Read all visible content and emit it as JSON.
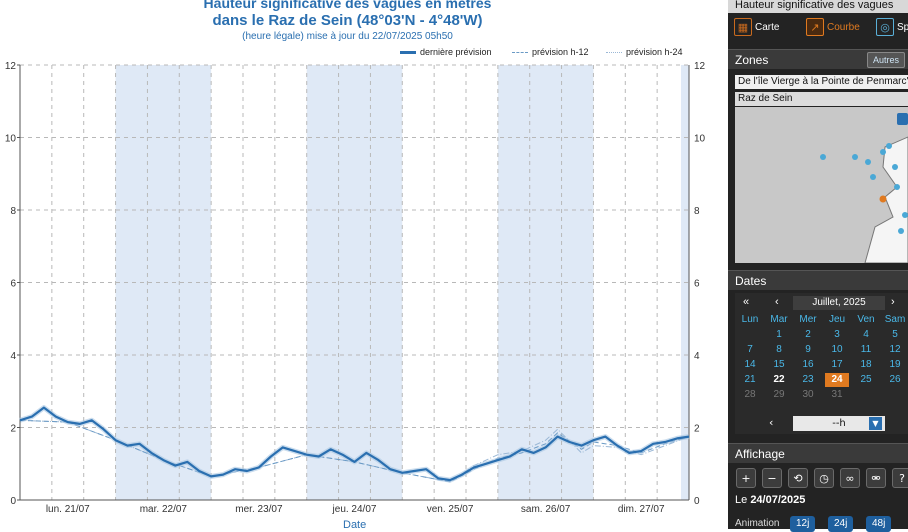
{
  "chart_data": {
    "type": "line",
    "title": "Hauteur significative des vagues en mètres",
    "subtitle": "dans le Raz de Sein (48°03'N - 4°48'W)",
    "note": "(heure légale) mise à jour du 22/07/2025 05h50",
    "xlabel": "Date",
    "ylabel": "",
    "ylim": [
      0,
      12
    ],
    "yticks": [
      0,
      2,
      4,
      6,
      8,
      10,
      12
    ],
    "xlim": [
      0,
      7
    ],
    "day_labels": [
      "lun. 21/07",
      "mar. 22/07",
      "mer. 23/07",
      "jeu. 24/07",
      "ven. 25/07",
      "sam. 26/07",
      "dim. 27/07"
    ],
    "grid": true,
    "legend_position": "top-right",
    "series": [
      {
        "name": "dernière prévision",
        "style": "solid",
        "color": "#2a6fb0",
        "x": [
          0,
          0.125,
          0.25,
          0.375,
          0.5,
          0.625,
          0.75,
          0.875,
          1.0,
          1.125,
          1.25,
          1.375,
          1.5,
          1.625,
          1.75,
          1.875,
          2.0,
          2.125,
          2.25,
          2.375,
          2.5,
          2.625,
          2.75,
          2.875,
          3.0,
          3.125,
          3.25,
          3.375,
          3.5,
          3.625,
          3.75,
          3.875,
          4.0,
          4.125,
          4.25,
          4.375,
          4.5,
          4.625,
          4.75,
          4.875,
          5.0,
          5.125,
          5.25,
          5.375,
          5.5,
          5.625,
          5.75,
          5.875,
          6.0,
          6.125,
          6.25,
          6.375,
          6.5,
          6.625,
          6.75,
          6.875,
          7.0
        ],
        "y": [
          2.2,
          2.3,
          2.55,
          2.3,
          2.15,
          2.1,
          2.2,
          1.95,
          1.65,
          1.5,
          1.55,
          1.3,
          1.1,
          0.95,
          1.05,
          0.8,
          0.65,
          0.7,
          0.85,
          0.8,
          0.9,
          1.2,
          1.45,
          1.35,
          1.25,
          1.2,
          1.4,
          1.25,
          1.05,
          1.3,
          1.1,
          0.85,
          0.75,
          0.8,
          0.85,
          0.6,
          0.55,
          0.7,
          0.9,
          1.0,
          1.1,
          1.2,
          1.4,
          1.3,
          1.45,
          1.75,
          1.6,
          1.5,
          1.65,
          1.75,
          1.5,
          1.3,
          1.35,
          1.55,
          1.6,
          1.7,
          1.75
        ]
      },
      {
        "name": "prévision h-12",
        "style": "dashed",
        "color": "#6a9ac5",
        "x": [
          0,
          0.5,
          1.0,
          1.5,
          2.0,
          2.5,
          3.0,
          3.5,
          4.0,
          4.5,
          4.75,
          5.0,
          5.25,
          5.5,
          5.625,
          5.875,
          6.0,
          6.25,
          6.5,
          6.75,
          7.0
        ],
        "y": [
          2.2,
          2.15,
          1.65,
          1.1,
          0.65,
          0.9,
          1.25,
          1.05,
          0.75,
          0.5,
          0.85,
          1.15,
          1.3,
          1.55,
          1.85,
          1.4,
          1.6,
          1.5,
          1.3,
          1.55,
          1.75
        ]
      },
      {
        "name": "prévision h-24",
        "style": "dash-dot",
        "color": "#9bb8d6",
        "x": [
          0,
          0.5,
          1.0,
          1.5,
          2.0,
          2.5,
          3.0,
          3.5,
          4.0,
          4.5,
          4.75,
          5.0,
          5.25,
          5.5,
          5.625,
          5.875,
          6.0,
          6.25,
          6.5,
          6.75,
          7.0
        ],
        "y": [
          2.2,
          2.15,
          1.65,
          1.1,
          0.65,
          0.9,
          1.25,
          1.05,
          0.75,
          0.5,
          0.95,
          1.25,
          1.35,
          1.65,
          1.95,
          1.3,
          1.5,
          1.45,
          1.25,
          1.5,
          1.75
        ]
      }
    ]
  },
  "side": {
    "header_title": "Hauteur significative des vagues",
    "view_buttons": [
      {
        "label": "Carte",
        "icon": "map-icon"
      },
      {
        "label": "Courbe",
        "icon": "chart-icon",
        "active": true
      },
      {
        "label": "Sp",
        "icon": "target-icon"
      }
    ],
    "zones": {
      "title": "Zones",
      "others_label": "Autres",
      "zone_row": "De l'île Vierge à la Pointe de Penmarc'h",
      "site_row": "Raz de Sein"
    },
    "dates": {
      "title": "Dates",
      "nav_prev_year": "«",
      "nav_prev_month": "‹",
      "month_label": "Juillet, 2025",
      "nav_next_month": "›",
      "nav_next_year": "»",
      "weekdays": [
        "Lun",
        "Mar",
        "Mer",
        "Jeu",
        "Ven",
        "Sam"
      ],
      "weeks": [
        [
          "",
          "1",
          "2",
          "3",
          "4",
          "5"
        ],
        [
          "7",
          "8",
          "9",
          "10",
          "11",
          "12"
        ],
        [
          "14",
          "15",
          "16",
          "17",
          "18",
          "19"
        ],
        [
          "21",
          "22",
          "23",
          "24",
          "25",
          "26"
        ],
        [
          "28",
          "29",
          "30",
          "31",
          "",
          ""
        ]
      ],
      "today": "22",
      "selected": "24",
      "hour_prev": "‹",
      "hour_value": "--h",
      "hour_next": "›"
    },
    "affichage": {
      "title": "Affichage",
      "tools": [
        "zoom-in-icon",
        "zoom-out-icon",
        "reset-icon",
        "days-icon",
        "link-icon",
        "unlink-icon",
        "help-icon",
        "extra-icon"
      ],
      "date_prefix": "Le",
      "date_value": "24/07/2025",
      "animation_label": "Animation",
      "animation_buttons": [
        "12j",
        "24j",
        "48j"
      ]
    }
  }
}
